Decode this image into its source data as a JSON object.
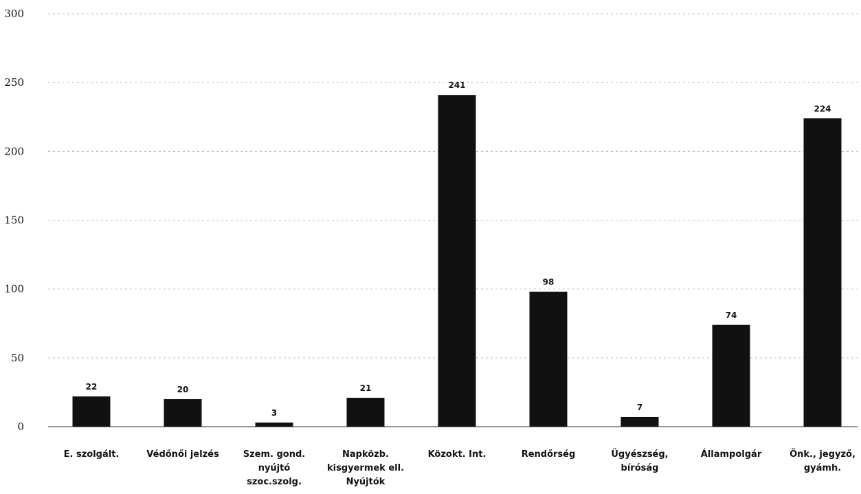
{
  "chart_data": {
    "type": "bar",
    "title": "",
    "xlabel": "",
    "ylabel": "",
    "ylim": [
      0,
      300
    ],
    "yticks": [
      0,
      50,
      100,
      150,
      200,
      250,
      300
    ],
    "grid": true,
    "legend": "none",
    "bar_color": "#111111",
    "grid_color": "#b8b8b8",
    "categories": [
      [
        "E. szolgált."
      ],
      [
        "Védőnői jelzés"
      ],
      [
        "Szem. gond.",
        "nyújtó",
        "szoc.szolg."
      ],
      [
        "Napközb.",
        "kisgyermek ell.",
        "Nyújtók"
      ],
      [
        "Közokt. Int."
      ],
      [
        "Rendőrség"
      ],
      [
        "Ügyészség,",
        "bíróság"
      ],
      [
        "Állampolgár"
      ],
      [
        "Önk., jegyző,",
        "gyámh."
      ]
    ],
    "values": [
      22,
      20,
      3,
      21,
      241,
      98,
      7,
      74,
      224
    ],
    "data_labels": [
      "22",
      "20",
      "3",
      "21",
      "241",
      "98",
      "7",
      "74",
      "224"
    ]
  }
}
